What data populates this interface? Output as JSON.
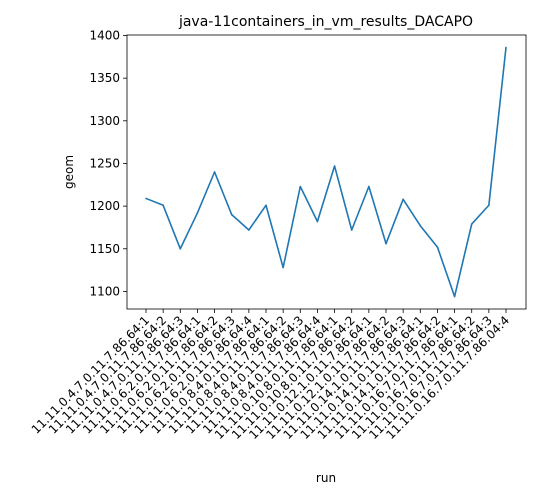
{
  "chart_data": {
    "type": "line",
    "title": "java-11containers_in_vm_results_DACAPO",
    "xlabel": "run",
    "ylabel": "geom",
    "categories": [
      "11.11.0.4.7.0.11.7.86.64:1",
      "11.11.0.4.7.0.11.7.86.64:2",
      "11.11.0.4.7.0.11.7.86.64:3",
      "11.11.0.6.2.0.11.7.86.64:1",
      "11.11.0.6.2.0.11.7.86.64:2",
      "11.11.0.6.2.0.11.7.86.64:3",
      "11.11.0.6.2.0.11.7.86.64:4",
      "11.11.0.8.4.0.11.7.86.64:1",
      "11.11.0.8.4.0.11.7.86.64:2",
      "11.11.0.8.4.0.11.7.86.64:3",
      "11.11.0.8.4.0.11.7.86.64:4",
      "11.11.0.10.8.0.11.7.86.64:1",
      "11.11.0.10.8.0.11.7.86.64:2",
      "11.11.0.12.1.0.11.7.86.64:1",
      "11.11.0.12.1.0.11.7.86.64:2",
      "11.11.0.14.1.0.11.7.86.64:3",
      "11.11.0.14.1.0.11.7.86.64:1",
      "11.11.0.14.1.0.11.7.86.64:2",
      "11.11.0.16.7.0.11.7.86.64:1",
      "11.11.0.16.7.0.11.7.86.64:2",
      "11.11.0.16.7.0.11.7.86.64:3",
      "11.11.0.16.7.0.11.7.86.04:4"
    ],
    "series": [
      {
        "values": [
          1209,
          1201,
          1150,
          1192,
          1240,
          1190,
          1172,
          1201,
          1128,
          1223,
          1182,
          1247,
          1172,
          1223,
          1156,
          1208,
          1177,
          1152,
          1094,
          1179,
          1201,
          1386
        ],
        "color": "#1f77b4"
      }
    ],
    "yticks": [
      1100,
      1150,
      1200,
      1250,
      1300,
      1350,
      1400
    ],
    "ylim": [
      1079.4,
      1400.6
    ],
    "grid": false,
    "legend": "none"
  }
}
